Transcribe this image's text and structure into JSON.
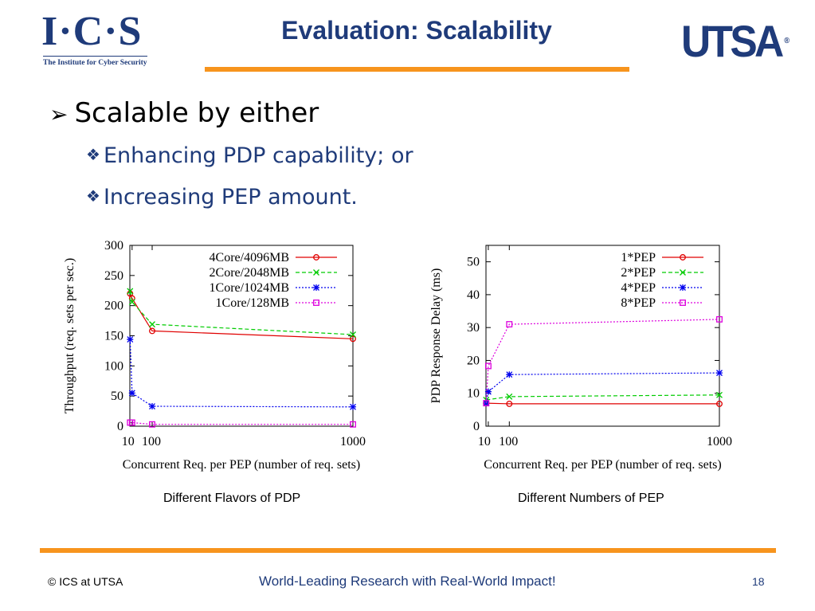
{
  "header": {
    "logo_left_big": "I·C·S",
    "logo_left_small": "The Institute for Cyber Security",
    "title": "Evaluation: Scalability",
    "logo_right": "UTSA",
    "logo_right_tm": "®"
  },
  "content": {
    "bullet_main": "Scalable by either",
    "bullet_arrow": "➢",
    "bullet_diamond": "❖",
    "sub_bullets": [
      "Enhancing PDP capability; or",
      "Increasing PEP amount."
    ]
  },
  "captions": [
    "Different Flavors of PDP",
    "Different Numbers of PEP"
  ],
  "footer": {
    "left": "© ICS at UTSA",
    "center": "World-Leading Research with Real-World Impact!",
    "page": "18"
  },
  "colors": {
    "accent": "#f7941d",
    "brand": "#1f3b7a",
    "red": "#e00000",
    "green": "#00cc00",
    "blue": "#0000ee",
    "magenta": "#dd00dd"
  },
  "chart_data": [
    {
      "type": "line",
      "xlabel": "Concurrent Req. per PEP (number of req. sets)",
      "ylabel": "Throughput (req. sets per sec.)",
      "xlim": [
        0,
        1000
      ],
      "ylim": [
        0,
        300
      ],
      "xticks": [
        10,
        100,
        1000
      ],
      "yticks": [
        0,
        50,
        100,
        150,
        200,
        250,
        300
      ],
      "grid": false,
      "legend": "top-right",
      "series": [
        {
          "name": "4Core/4096MB",
          "marker": "circle",
          "dash": "solid",
          "color": "#e00000",
          "x": [
            1,
            10,
            100,
            1000
          ],
          "y": [
            220,
            212,
            158,
            145
          ]
        },
        {
          "name": "2Core/2048MB",
          "marker": "x",
          "dash": "dashed",
          "color": "#00cc00",
          "x": [
            1,
            10,
            100,
            1000
          ],
          "y": [
            224,
            206,
            169,
            152
          ]
        },
        {
          "name": "1Core/1024MB",
          "marker": "star",
          "dash": "dotted",
          "color": "#0000ee",
          "x": [
            1,
            10,
            100,
            1000
          ],
          "y": [
            144,
            55,
            33,
            32
          ]
        },
        {
          "name": "1Core/128MB",
          "marker": "square",
          "dash": "dotted",
          "color": "#dd00dd",
          "x": [
            1,
            10,
            100,
            1000
          ],
          "y": [
            6,
            6,
            3,
            3
          ]
        }
      ]
    },
    {
      "type": "line",
      "xlabel": "Concurrent Req. per PEP (number of req. sets)",
      "ylabel": "PDP Response Delay (ms)",
      "xlim": [
        0,
        1000
      ],
      "ylim": [
        0,
        55
      ],
      "xticks": [
        10,
        100,
        1000
      ],
      "yticks": [
        0,
        10,
        20,
        30,
        40,
        50
      ],
      "grid": false,
      "legend": "top-right",
      "series": [
        {
          "name": "1*PEP",
          "marker": "circle",
          "dash": "solid",
          "color": "#e00000",
          "x": [
            1,
            100,
            1000
          ],
          "y": [
            7,
            6.8,
            6.8
          ]
        },
        {
          "name": "2*PEP",
          "marker": "x",
          "dash": "dashed",
          "color": "#00cc00",
          "x": [
            1,
            100,
            1000
          ],
          "y": [
            8,
            9,
            9.5
          ]
        },
        {
          "name": "4*PEP",
          "marker": "star",
          "dash": "dotted",
          "color": "#0000ee",
          "x": [
            1,
            10,
            100,
            1000
          ],
          "y": [
            7,
            10.5,
            15.7,
            16.2
          ]
        },
        {
          "name": "8*PEP",
          "marker": "square",
          "dash": "dotted",
          "color": "#dd00dd",
          "x": [
            1,
            10,
            100,
            1000
          ],
          "y": [
            7,
            18.3,
            31,
            32.5
          ]
        }
      ]
    }
  ]
}
